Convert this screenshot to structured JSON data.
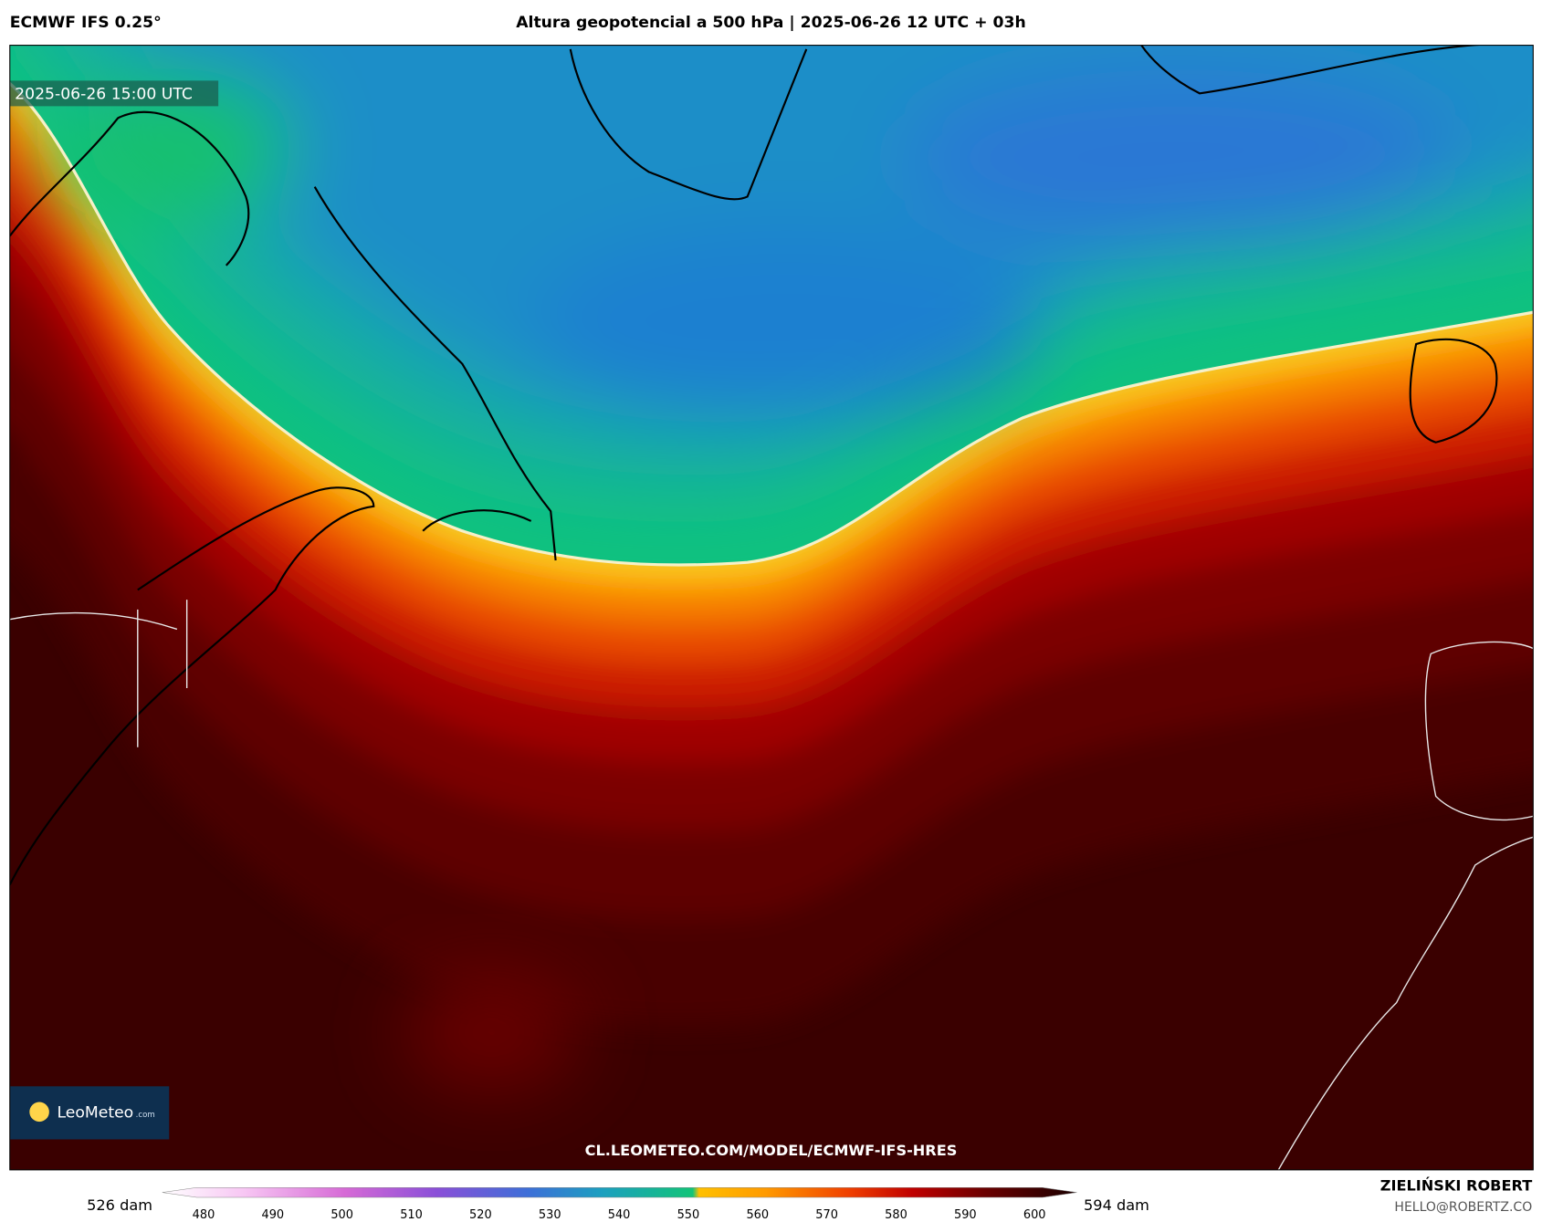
{
  "header": {
    "model": "ECMWF IFS 0.25°",
    "title": "Altura geopotencial a 500 hPa | 2025-06-26 12 UTC + 03h"
  },
  "map": {
    "valid_time": "2025-06-26 15:00 UTC",
    "logo": {
      "name": "LeoMeteo",
      "suffix": ".com"
    },
    "url": "CL.LEOMETEO.COM/MODEL/ECMWF-IFS-HRES"
  },
  "legend": {
    "min_label": "526 dam",
    "max_label": "594 dam",
    "ticks": [
      480,
      490,
      500,
      510,
      520,
      530,
      540,
      550,
      560,
      570,
      580,
      590,
      600
    ]
  },
  "footer": {
    "author": "ZIELIŃSKI ROBERT",
    "email": "HELLO@ROBERTZ.CO"
  }
}
